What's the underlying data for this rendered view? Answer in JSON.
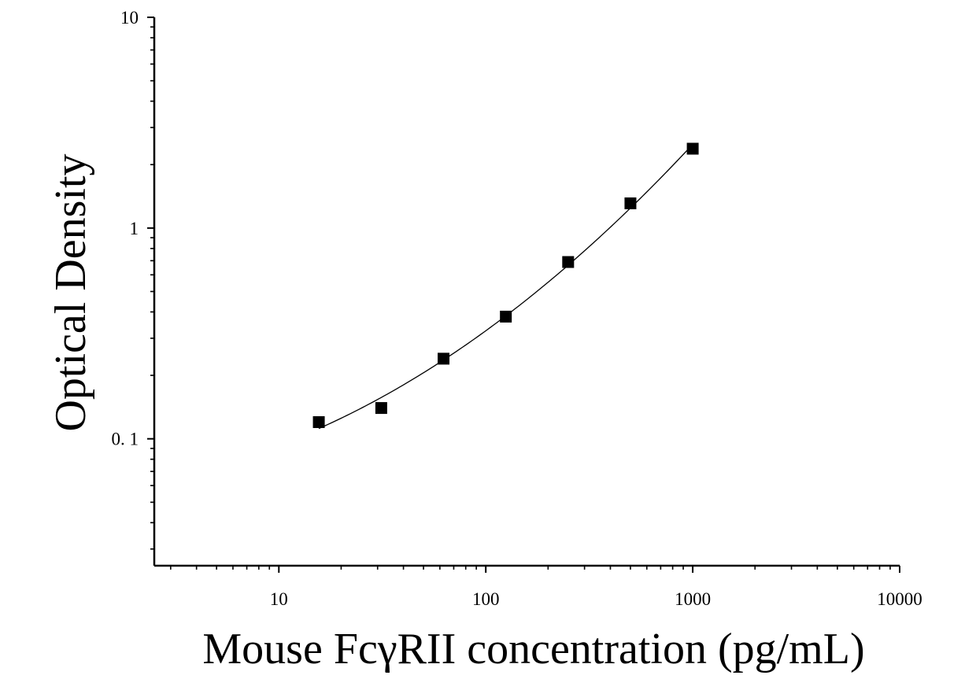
{
  "chart_data": {
    "type": "scatter",
    "title": "",
    "xlabel": "Mouse FcγRII concentration (pg/mL)",
    "ylabel": "Optical Density",
    "x_scale": "log",
    "y_scale": "log",
    "xlim": [
      2.5,
      10000
    ],
    "ylim": [
      0.025,
      10
    ],
    "x_ticks": [
      {
        "value": 10,
        "label": "10"
      },
      {
        "value": 100,
        "label": "100"
      },
      {
        "value": 1000,
        "label": "1000"
      },
      {
        "value": 10000,
        "label": "10000"
      }
    ],
    "y_ticks": [
      {
        "value": 0.1,
        "label": "0. 1"
      },
      {
        "value": 1,
        "label": "1"
      },
      {
        "value": 10,
        "label": "10"
      }
    ],
    "grid": false,
    "legend": "none",
    "series": [
      {
        "marker": "square",
        "fit_line": true,
        "points": [
          {
            "x": 15.6,
            "y": 0.12
          },
          {
            "x": 31.25,
            "y": 0.14
          },
          {
            "x": 62.5,
            "y": 0.24
          },
          {
            "x": 125,
            "y": 0.38
          },
          {
            "x": 250,
            "y": 0.69
          },
          {
            "x": 500,
            "y": 1.31
          },
          {
            "x": 1000,
            "y": 2.38
          }
        ]
      }
    ],
    "colors": {
      "axis": "#000000",
      "marker": "#000000",
      "line": "#000000"
    }
  }
}
